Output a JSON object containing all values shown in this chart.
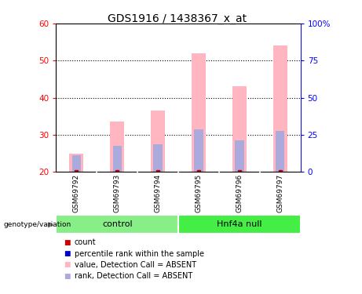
{
  "title": "GDS1916 / 1438367_x_at",
  "samples": [
    "GSM69792",
    "GSM69793",
    "GSM69794",
    "GSM69795",
    "GSM69796",
    "GSM69797"
  ],
  "ylim_left": [
    20,
    60
  ],
  "ylim_right": [
    0,
    100
  ],
  "yticks_left": [
    20,
    30,
    40,
    50,
    60
  ],
  "yticks_right": [
    0,
    25,
    50,
    75,
    100
  ],
  "yticklabels_right": [
    "0",
    "25",
    "50",
    "75",
    "100%"
  ],
  "pink_bar_tops": [
    25,
    33.5,
    36.5,
    52,
    43,
    54
  ],
  "blue_bar_tops": [
    24.5,
    27,
    27.5,
    31.5,
    28.5,
    31
  ],
  "bar_bottom": 20,
  "bar_width": 0.35,
  "blue_bar_width": 0.22,
  "pink_color": "#FFB6C1",
  "blue_color": "#AAAADD",
  "red_color": "#CC0000",
  "blue_dark_color": "#0000CC",
  "control_color": "#88EE88",
  "hnf4a_color": "#44EE44",
  "group_box_color": "#CCCCCC",
  "background_color": "#FFFFFF",
  "legend_items": [
    "count",
    "percentile rank within the sample",
    "value, Detection Call = ABSENT",
    "rank, Detection Call = ABSENT"
  ],
  "legend_colors": [
    "#CC0000",
    "#0000CC",
    "#FFB6C1",
    "#AAAADD"
  ],
  "title_fontsize": 10,
  "tick_fontsize": 7.5,
  "label_fontsize": 7,
  "sample_fontsize": 6.5,
  "group_fontsize": 8
}
